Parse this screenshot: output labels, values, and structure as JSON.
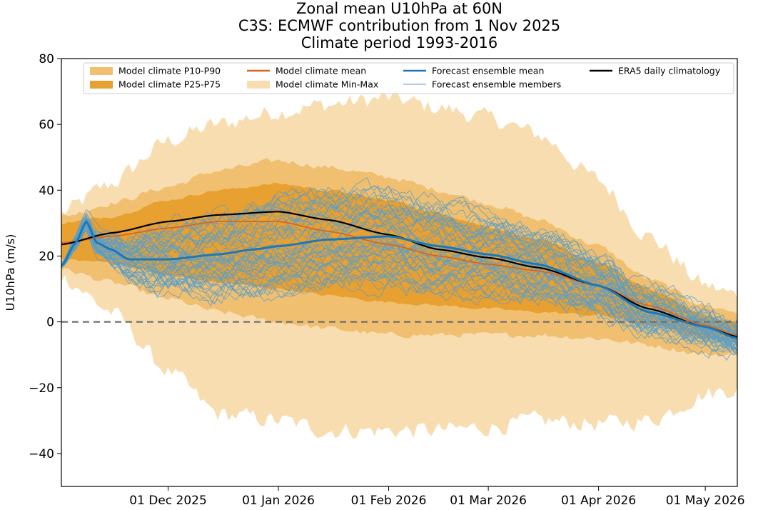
{
  "chart_data": {
    "type": "line",
    "title_lines": [
      "Zonal mean U10hPa at 60N",
      "C3S: ECMWF contribution from 1 Nov 2025",
      "Climate period 1993-2016"
    ],
    "ylabel": "U10hPa (m/s)",
    "xlabel": "",
    "ylim": [
      -50,
      80
    ],
    "yticks": [
      -40,
      -20,
      0,
      20,
      40,
      60,
      80
    ],
    "xlim": [
      "2025-11-01",
      "2026-05-10"
    ],
    "xticks": [
      {
        "date": "2025-12-01",
        "label": "01 Dec 2025"
      },
      {
        "date": "2026-01-01",
        "label": "01 Jan 2026"
      },
      {
        "date": "2026-02-01",
        "label": "01 Feb 2026"
      },
      {
        "date": "2026-03-01",
        "label": "01 Mar 2026"
      },
      {
        "date": "2026-04-01",
        "label": "01 Apr 2026"
      },
      {
        "date": "2026-05-01",
        "label": "01 May 2026"
      }
    ],
    "zero_line": {
      "y": 0,
      "style": "dashed",
      "color": "#707070"
    },
    "legend": {
      "placement": "top",
      "entries": [
        {
          "label": "Model climate P10-P90",
          "kind": "patch",
          "color": "#f0c070"
        },
        {
          "label": "Model climate P25-P75",
          "kind": "patch",
          "color": "#e8a030"
        },
        {
          "label": "Model climate mean",
          "kind": "line",
          "color": "#d9661f"
        },
        {
          "label": "Model climate Min-Max",
          "kind": "patch",
          "color": "#f8ddb0"
        },
        {
          "label": "Forecast ensemble mean",
          "kind": "line",
          "color": "#1f77b4"
        },
        {
          "label": "Forecast ensemble members",
          "kind": "thin-line",
          "color": "#5b9ec9"
        },
        {
          "label": "ERA5 daily climatology",
          "kind": "line",
          "color": "#000000"
        }
      ]
    },
    "colors": {
      "minmax": "#f8ddb0",
      "p10p90": "#f0c070",
      "p25p75": "#e8a030",
      "model_mean": "#d9661f",
      "ens_mean": "#1f77b4",
      "members": "#5b9ec9",
      "era5": "#000000"
    },
    "bands": {
      "x": [
        "2025-11-01",
        "2025-11-15",
        "2025-12-01",
        "2025-12-15",
        "2026-01-01",
        "2026-01-15",
        "2026-02-01",
        "2026-02-15",
        "2026-03-01",
        "2026-03-15",
        "2026-04-01",
        "2026-04-15",
        "2026-05-01",
        "2026-05-10"
      ],
      "minmax": {
        "upper": [
          33,
          42,
          55,
          60,
          64,
          66,
          68,
          65,
          62,
          57,
          43,
          26,
          11,
          8
        ],
        "lower": [
          14,
          3,
          -15,
          -28,
          -30,
          -33,
          -33,
          -33,
          -32,
          -30,
          -31,
          -30,
          -22,
          -20
        ]
      },
      "p10p90": {
        "upper": [
          32,
          36,
          41,
          46,
          49,
          47,
          44,
          40,
          36,
          31,
          23,
          13,
          5,
          3
        ],
        "lower": [
          16,
          12,
          7,
          3,
          0,
          -2,
          -4,
          -4,
          -4,
          -4,
          -5,
          -7,
          -10,
          -10
        ]
      },
      "p25p75": {
        "upper": [
          30,
          32,
          37,
          40,
          42,
          40,
          37,
          33,
          29,
          25,
          18,
          10,
          2,
          0
        ],
        "lower": [
          19,
          18,
          14,
          12,
          10,
          8,
          6,
          5,
          4,
          3,
          2,
          -1,
          -5,
          -6
        ]
      }
    },
    "series": [
      {
        "name": "Model climate mean",
        "x": [
          "2025-11-01",
          "2025-11-15",
          "2025-12-01",
          "2025-12-15",
          "2026-01-01",
          "2026-01-15",
          "2026-02-01",
          "2026-02-15",
          "2026-03-01",
          "2026-03-15",
          "2026-04-01",
          "2026-04-15",
          "2026-05-01",
          "2026-05-10"
        ],
        "values": [
          24,
          26,
          28.5,
          30.5,
          30.5,
          27.5,
          23.5,
          20,
          17.5,
          15.5,
          11,
          5,
          -1,
          -4
        ]
      },
      {
        "name": "ERA5 daily climatology",
        "x": [
          "2025-11-01",
          "2025-11-15",
          "2025-12-01",
          "2025-12-15",
          "2026-01-01",
          "2026-01-15",
          "2026-02-01",
          "2026-02-15",
          "2026-03-01",
          "2026-03-15",
          "2026-04-01",
          "2026-04-15",
          "2026-05-01",
          "2026-05-10"
        ],
        "values": [
          23.5,
          27,
          30.5,
          32.5,
          33.5,
          31,
          26.5,
          22,
          19.5,
          16.5,
          11,
          4,
          -1.5,
          -4.5
        ]
      },
      {
        "name": "Forecast ensemble mean",
        "x": [
          "2025-11-01",
          "2025-11-05",
          "2025-11-08",
          "2025-11-11",
          "2025-11-15",
          "2025-11-20",
          "2025-12-01",
          "2025-12-15",
          "2025-12-25",
          "2026-01-01",
          "2026-01-15",
          "2026-02-01",
          "2026-02-15",
          "2026-03-01",
          "2026-03-15",
          "2026-04-01",
          "2026-04-15",
          "2026-05-01",
          "2026-05-10"
        ],
        "values": [
          17,
          24,
          30.5,
          24,
          22,
          19,
          19,
          20.5,
          22,
          23,
          25,
          26,
          23,
          20.5,
          17.5,
          11,
          3,
          -1.5,
          -5
        ]
      }
    ],
    "ensemble_members": {
      "count": 50,
      "note": "approximate envelope; individual members not digitized"
    }
  }
}
